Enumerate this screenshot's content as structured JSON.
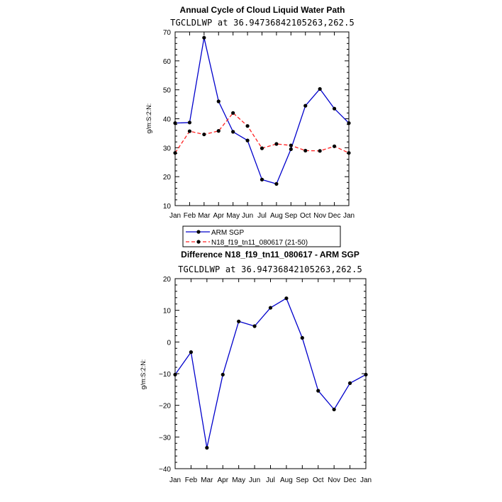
{
  "chart_data": [
    {
      "type": "line",
      "title": "Annual Cycle of Cloud Liquid Water Path",
      "subtitle": "TGCLDLWP at 36.94736842105263,262.5",
      "ylabel": "g/m:S:2:N:",
      "xlabel": "",
      "categories": [
        "Jan",
        "Feb",
        "Mar",
        "Apr",
        "May",
        "Jun",
        "Jul",
        "Aug",
        "Sep",
        "Oct",
        "Nov",
        "Dec",
        "Jan"
      ],
      "ylim": [
        10,
        70
      ],
      "yticks": [
        10,
        20,
        30,
        40,
        50,
        60,
        70
      ],
      "ytick_labels": [
        "10",
        "20",
        "30",
        "40",
        "50",
        "60",
        "70"
      ],
      "series": [
        {
          "name": "ARM SGP",
          "color": "#0000cc",
          "dash": "solid",
          "values": [
            38.5,
            38.7,
            68.0,
            46.0,
            35.5,
            32.5,
            19.0,
            17.5,
            29.5,
            44.5,
            50.3,
            43.5,
            38.5
          ]
        },
        {
          "name": "N18_f19_tn11_080617 (21-50)",
          "color": "#ff2020",
          "dash": "dashed",
          "values": [
            28.2,
            35.7,
            34.6,
            35.8,
            42.0,
            37.5,
            29.8,
            31.3,
            30.8,
            29.0,
            28.9,
            30.5,
            28.2
          ]
        }
      ]
    },
    {
      "type": "line",
      "title": "Difference N18_f19_tn11_080617 - ARM SGP",
      "subtitle": "TGCLDLWP at 36.94736842105263,262.5",
      "ylabel": "g/m:S:2:N:",
      "xlabel": "",
      "categories": [
        "Jan",
        "Feb",
        "Mar",
        "Apr",
        "May",
        "Jun",
        "Jul",
        "Aug",
        "Sep",
        "Oct",
        "Nov",
        "Dec",
        "Jan"
      ],
      "ylim": [
        -40,
        20
      ],
      "yticks": [
        -40,
        -30,
        -20,
        -10,
        0,
        10,
        20
      ],
      "ytick_labels": [
        "−40",
        "−30",
        "−20",
        "−10",
        "0",
        "10",
        "20"
      ],
      "series": [
        {
          "name": "Difference",
          "color": "#0000cc",
          "dash": "solid",
          "values": [
            -10.3,
            -3.2,
            -33.4,
            -10.3,
            6.5,
            5.0,
            10.8,
            13.8,
            1.3,
            -15.4,
            -21.3,
            -13.0,
            -10.3
          ]
        }
      ]
    }
  ]
}
